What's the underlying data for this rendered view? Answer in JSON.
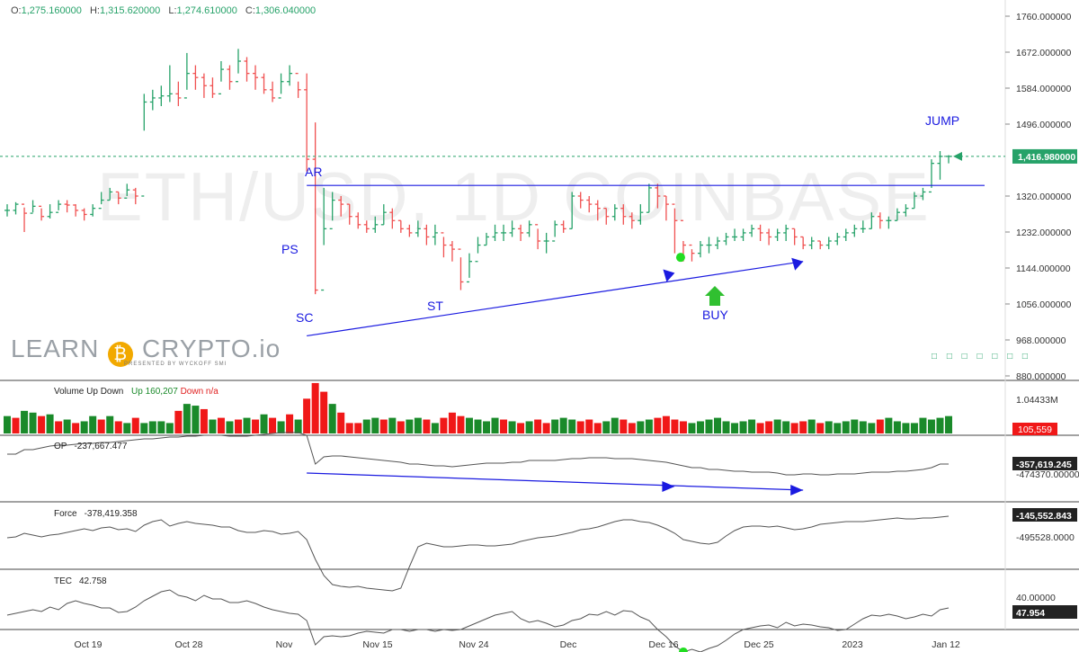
{
  "ohlc": {
    "o_key": "O:",
    "o": "1,275.160000",
    "h_key": "H:",
    "h": "1,315.620000",
    "l_key": "L:",
    "l": "1,274.610000",
    "c_key": "C:",
    "c": "1,306.040000"
  },
  "watermark": "ETH/USD, 1D COINBASE",
  "logo": {
    "learn": "LEARN",
    "crypto": "CRYPTO.io",
    "sub": "PRESENTED BY WYCKOFF SMI",
    "coin_icon": "bitcoin-icon"
  },
  "colors": {
    "up": "#26a269",
    "down": "#f05050",
    "vol_up": "#1a8a2a",
    "vol_down": "#f01818",
    "annot": "#1a1ae0",
    "buy_arrow": "#30c030",
    "marker": "#22dd22",
    "line": "#555555"
  },
  "bottom_dots": "□ □ □ □ □ □ □",
  "chart_data": [
    {
      "type": "candlestick",
      "title": "ETH/USD, 1D COINBASE",
      "ylim": [
        880,
        1760
      ],
      "yticks": [
        1760,
        1672,
        1584,
        1496,
        1408,
        1320,
        1232,
        1144,
        1056,
        968,
        880
      ],
      "ytick_labels": [
        "1760.000000",
        "1672.000000",
        "1584.000000",
        "1496.000000",
        "1320.000000",
        "1232.000000",
        "1144.000000",
        "1056.000000",
        "968.000000",
        "880.000000"
      ],
      "last_price": 1416.98,
      "last_price_label": "1,416.980000",
      "x_labels": [
        "Oct 19",
        "Oct 28",
        "Nov",
        "Nov 15",
        "Nov 24",
        "Dec",
        "Dec 16",
        "Dec 25",
        "2023",
        "Jan 12"
      ],
      "close": [
        1285,
        1300,
        1278,
        1295,
        1270,
        1280,
        1300,
        1298,
        1285,
        1275,
        1290,
        1310,
        1330,
        1315,
        1335,
        1320,
        1550,
        1560,
        1565,
        1570,
        1560,
        1620,
        1610,
        1590,
        1570,
        1630,
        1600,
        1650,
        1620,
        1610,
        1580,
        1560,
        1600,
        1620,
        1580,
        1410,
        1090,
        1240,
        1310,
        1300,
        1270,
        1250,
        1240,
        1250,
        1280,
        1260,
        1240,
        1230,
        1240,
        1220,
        1230,
        1200,
        1190,
        1110,
        1160,
        1200,
        1220,
        1230,
        1230,
        1240,
        1230,
        1250,
        1210,
        1210,
        1250,
        1240,
        1320,
        1310,
        1300,
        1290,
        1270,
        1290,
        1270,
        1260,
        1280,
        1340,
        1320,
        1300,
        1260,
        1200,
        1180,
        1200,
        1200,
        1210,
        1220,
        1220,
        1230,
        1240,
        1230,
        1220,
        1230,
        1240,
        1220,
        1200,
        1210,
        1200,
        1210,
        1220,
        1230,
        1240,
        1240,
        1270,
        1260,
        1260,
        1280,
        1290,
        1320,
        1330,
        1400,
        1417,
        1417
      ],
      "high": [
        1300,
        1305,
        1292,
        1310,
        1290,
        1300,
        1310,
        1310,
        1300,
        1290,
        1300,
        1330,
        1340,
        1330,
        1350,
        1340,
        1570,
        1580,
        1590,
        1640,
        1600,
        1670,
        1640,
        1620,
        1610,
        1650,
        1640,
        1680,
        1660,
        1640,
        1620,
        1600,
        1620,
        1640,
        1600,
        1620,
        1500,
        1340,
        1330,
        1320,
        1300,
        1280,
        1260,
        1270,
        1300,
        1290,
        1260,
        1250,
        1260,
        1250,
        1250,
        1220,
        1210,
        1170,
        1180,
        1220,
        1230,
        1250,
        1250,
        1260,
        1250,
        1260,
        1240,
        1230,
        1260,
        1260,
        1330,
        1330,
        1320,
        1310,
        1290,
        1300,
        1300,
        1280,
        1300,
        1350,
        1350,
        1320,
        1290,
        1210,
        1190,
        1210,
        1220,
        1220,
        1230,
        1240,
        1240,
        1250,
        1250,
        1240,
        1240,
        1250,
        1240,
        1220,
        1220,
        1210,
        1220,
        1230,
        1240,
        1250,
        1260,
        1280,
        1280,
        1270,
        1290,
        1300,
        1330,
        1340,
        1410,
        1430,
        1420
      ],
      "low": [
        1270,
        1275,
        1232,
        1280,
        1260,
        1265,
        1285,
        1280,
        1270,
        1260,
        1270,
        1300,
        1310,
        1300,
        1320,
        1300,
        1480,
        1530,
        1540,
        1550,
        1540,
        1580,
        1580,
        1560,
        1560,
        1600,
        1580,
        1620,
        1600,
        1580,
        1570,
        1550,
        1570,
        1590,
        1560,
        1380,
        1080,
        1200,
        1260,
        1270,
        1250,
        1240,
        1230,
        1230,
        1250,
        1240,
        1230,
        1220,
        1220,
        1200,
        1200,
        1170,
        1160,
        1090,
        1120,
        1180,
        1200,
        1210,
        1210,
        1220,
        1210,
        1220,
        1190,
        1180,
        1220,
        1230,
        1240,
        1290,
        1280,
        1260,
        1250,
        1260,
        1250,
        1240,
        1250,
        1280,
        1290,
        1260,
        1180,
        1160,
        1160,
        1170,
        1180,
        1190,
        1200,
        1210,
        1210,
        1220,
        1210,
        1200,
        1210,
        1210,
        1200,
        1190,
        1190,
        1190,
        1190,
        1200,
        1210,
        1220,
        1230,
        1240,
        1240,
        1240,
        1260,
        1270,
        1290,
        1310,
        1340,
        1360,
        1400
      ]
    },
    {
      "type": "bar",
      "title": "Volume Up Down",
      "up_label": "Up",
      "up_value": "160,207",
      "down_label": "Down",
      "down_value": "n/a",
      "ytick_label": "1.04433M",
      "last_value_label": "105,559",
      "values": [
        20,
        18,
        26,
        24,
        20,
        22,
        14,
        16,
        12,
        14,
        20,
        16,
        20,
        14,
        12,
        18,
        12,
        14,
        14,
        12,
        26,
        34,
        32,
        28,
        16,
        18,
        14,
        16,
        18,
        16,
        22,
        18,
        14,
        22,
        16,
        40,
        58,
        48,
        34,
        24,
        12,
        12,
        16,
        18,
        16,
        18,
        14,
        16,
        18,
        16,
        12,
        18,
        24,
        20,
        18,
        16,
        14,
        18,
        16,
        14,
        12,
        14,
        16,
        12,
        16,
        18,
        16,
        14,
        16,
        12,
        14,
        18,
        16,
        12,
        14,
        16,
        18,
        20,
        16,
        14,
        12,
        14,
        16,
        18,
        14,
        12,
        14,
        16,
        12,
        14,
        16,
        14,
        12,
        14,
        16,
        12,
        14,
        12,
        14,
        16,
        14,
        12,
        16,
        18,
        14,
        12,
        12,
        18,
        16,
        18,
        20
      ],
      "direction": [
        1,
        0,
        1,
        1,
        0,
        1,
        0,
        1,
        0,
        1,
        1,
        0,
        1,
        0,
        1,
        0,
        1,
        1,
        1,
        1,
        0,
        1,
        1,
        0,
        1,
        0,
        1,
        0,
        1,
        0,
        1,
        0,
        1,
        0,
        1,
        0,
        0,
        0,
        1,
        0,
        0,
        0,
        1,
        1,
        0,
        1,
        0,
        1,
        1,
        0,
        1,
        0,
        0,
        0,
        1,
        1,
        1,
        1,
        0,
        1,
        0,
        1,
        0,
        0,
        1,
        1,
        1,
        0,
        0,
        0,
        1,
        1,
        0,
        0,
        1,
        1,
        0,
        0,
        0,
        0,
        1,
        1,
        1,
        1,
        1,
        1,
        1,
        1,
        0,
        0,
        1,
        1,
        0,
        0,
        1,
        0,
        1,
        1,
        1,
        1,
        1,
        1,
        0,
        1,
        1,
        1,
        1,
        1,
        1,
        1,
        1
      ]
    },
    {
      "type": "line",
      "title": "OP",
      "value_label": "-237,667.477",
      "last_value_label": "-357,619.245",
      "ytick_label": "-474370.00000",
      "values": [
        505,
        505,
        500,
        500,
        498,
        496,
        495,
        495,
        494,
        493,
        493,
        492,
        492,
        491,
        490,
        489,
        488,
        488,
        487,
        486,
        486,
        485,
        485,
        484,
        484,
        484,
        485,
        485,
        485,
        484,
        483,
        482,
        481,
        481,
        481,
        484,
        516,
        508,
        507,
        507,
        508,
        509,
        510,
        511,
        512,
        513,
        514,
        516,
        516,
        517,
        518,
        518,
        519,
        518,
        517,
        516,
        515,
        515,
        515,
        514,
        514,
        512,
        512,
        512,
        512,
        511,
        510,
        510,
        509,
        509,
        509,
        510,
        510,
        510,
        511,
        512,
        513,
        514,
        516,
        518,
        520,
        520,
        522,
        522,
        523,
        524,
        524,
        525,
        525,
        525,
        526,
        528,
        528,
        527,
        527,
        528,
        528,
        527,
        527,
        527,
        526,
        525,
        525,
        525,
        524,
        524,
        523,
        522,
        520,
        516,
        516
      ]
    },
    {
      "type": "line",
      "title": "Force",
      "value_label": "-378,419.358",
      "last_value_label": "-145,552.843",
      "ytick_label": "-495528.0000",
      "values": [
        598,
        597,
        593,
        595,
        597,
        595,
        594,
        592,
        590,
        588,
        590,
        587,
        586,
        589,
        588,
        591,
        584,
        580,
        578,
        585,
        582,
        580,
        582,
        583,
        584,
        586,
        586,
        590,
        592,
        592,
        590,
        591,
        594,
        593,
        591,
        600,
        622,
        640,
        650,
        652,
        653,
        652,
        654,
        655,
        656,
        657,
        654,
        630,
        608,
        604,
        606,
        608,
        608,
        607,
        606,
        606,
        607,
        607,
        606,
        605,
        602,
        600,
        598,
        597,
        596,
        594,
        592,
        589,
        588,
        586,
        583,
        580,
        578,
        578,
        580,
        581,
        584,
        588,
        593,
        600,
        602,
        604,
        605,
        603,
        596,
        590,
        586,
        585,
        585,
        586,
        585,
        587,
        589,
        588,
        586,
        583,
        582,
        581,
        580,
        580,
        580,
        579,
        578,
        577,
        576,
        577,
        577,
        576,
        576,
        575,
        574
      ]
    },
    {
      "type": "line",
      "title": "TEC",
      "value_label": "42.758",
      "last_value_label": "47.954",
      "ytick_label": "40.00000",
      "values": [
        684,
        682,
        680,
        678,
        680,
        675,
        678,
        671,
        668,
        671,
        673,
        676,
        676,
        681,
        680,
        675,
        668,
        663,
        658,
        656,
        662,
        664,
        668,
        662,
        666,
        666,
        670,
        670,
        668,
        671,
        675,
        678,
        680,
        682,
        683,
        690,
        717,
        708,
        707,
        708,
        707,
        704,
        702,
        703,
        704,
        700,
        700,
        702,
        700,
        700,
        702,
        700,
        701,
        700,
        696,
        692,
        688,
        684,
        682,
        680,
        688,
        692,
        690,
        693,
        697,
        695,
        690,
        688,
        683,
        684,
        680,
        684,
        679,
        680,
        686,
        690,
        700,
        708,
        718,
        725,
        722,
        725,
        721,
        718,
        712,
        705,
        700,
        698,
        696,
        695,
        698,
        692,
        696,
        694,
        695,
        697,
        698,
        701,
        700,
        694,
        688,
        684,
        685,
        683,
        685,
        688,
        686,
        683,
        685,
        678,
        676
      ],
      "marker_index": 79
    }
  ],
  "annotations": {
    "AR": "AR",
    "PS": "PS",
    "SC": "SC",
    "ST": "ST",
    "BUY": "BUY",
    "JUMP": "JUMP"
  }
}
